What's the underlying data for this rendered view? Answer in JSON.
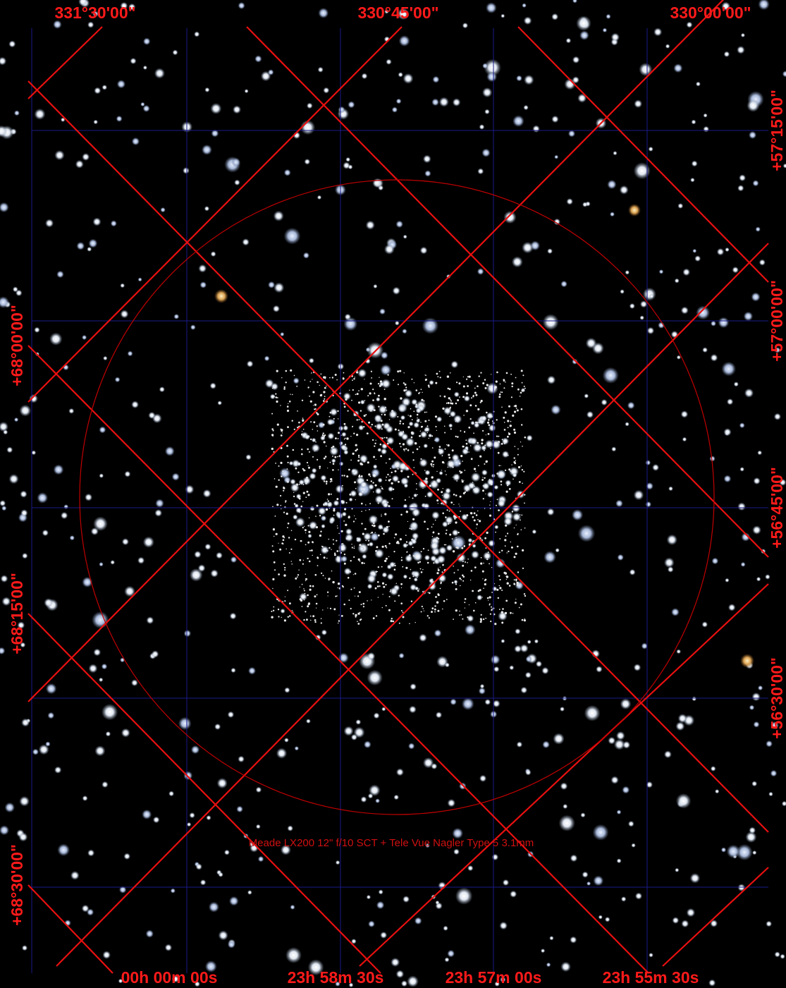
{
  "top_labels": [
    "331°30'00\"",
    "330°45'00\"",
    "330°00'00\""
  ],
  "right_labels": [
    "+57°15'00\"",
    "+57°00'00\"",
    "+56°45'00\"",
    "+56°30'00\""
  ],
  "left_labels": [
    "+68°00'00\"",
    "+68°15'00\"",
    "+68°30'00\""
  ],
  "bottom_labels": [
    "00h 00m 00s",
    "23h 58m 30s",
    "23h 57m 00s",
    "23h 55m 30s"
  ],
  "eyepiece_caption": "Meade LX200 12\" f/10 SCT + Tele Vue Nagler Type 5 3.1mm"
}
